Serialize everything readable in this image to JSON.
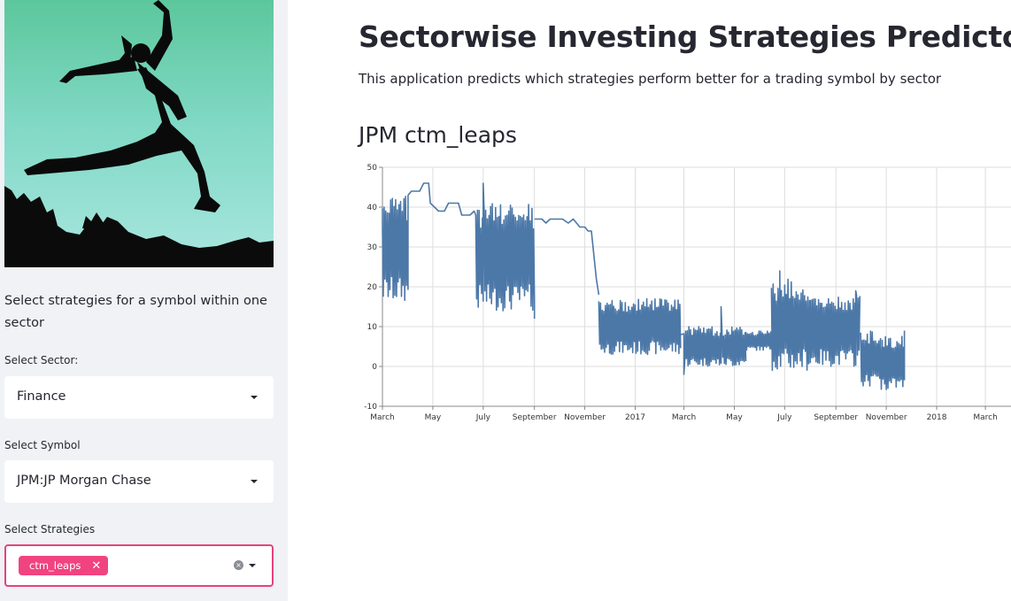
{
  "sidebar": {
    "intro": "Select strategies for a symbol within one sector",
    "sector_label": "Select Sector:",
    "sector_value": "Finance",
    "symbol_label": "Select Symbol",
    "symbol_value": "JPM:JP Morgan Chase",
    "strategies_label": "Select Strategies",
    "selected_strategies": [
      "ctm_leaps"
    ],
    "tag_remove": "✕",
    "clear_icon": "×"
  },
  "main": {
    "title": "Sectorwise Investing Strategies Predictor",
    "subtitle": "This application predicts which strategies perform better for a trading symbol by sector",
    "chart_heading": "JPM ctm_leaps"
  },
  "colors": {
    "accent": "#f0437f",
    "line": "#4c78a8",
    "sidebar_bg": "#f0f2f6"
  },
  "chart_data": {
    "type": "line",
    "title": "JPM ctm_leaps",
    "ylim": [
      -10,
      50
    ],
    "yticks": [
      -10,
      0,
      10,
      20,
      30,
      40,
      50
    ],
    "xlim": [
      "2016-03-01",
      "2018-04-01"
    ],
    "xticks": [
      {
        "date": "2016-03-01",
        "label": "March"
      },
      {
        "date": "2016-05-01",
        "label": "May"
      },
      {
        "date": "2016-07-01",
        "label": "July"
      },
      {
        "date": "2016-09-01",
        "label": "September"
      },
      {
        "date": "2016-11-01",
        "label": "November"
      },
      {
        "date": "2017-01-01",
        "label": "2017"
      },
      {
        "date": "2017-03-01",
        "label": "March"
      },
      {
        "date": "2017-05-01",
        "label": "May"
      },
      {
        "date": "2017-07-01",
        "label": "July"
      },
      {
        "date": "2017-09-01",
        "label": "September"
      },
      {
        "date": "2017-11-01",
        "label": "November"
      },
      {
        "date": "2018-01-01",
        "label": "2018"
      },
      {
        "date": "2018-03-01",
        "label": "March"
      }
    ],
    "grid": true,
    "series": [
      {
        "color": "#4c78a8",
        "segments": [
          {
            "range": [
              "2016-03-01",
              "2016-04-01"
            ],
            "high": 43,
            "low": 16,
            "points": [
              [
                "2016-03-01",
                35
              ],
              [
                "2016-04-01",
                43
              ]
            ]
          },
          {
            "points": [
              [
                "2016-04-01",
                43
              ],
              [
                "2016-04-05",
                44
              ],
              [
                "2016-04-15",
                44
              ],
              [
                "2016-04-20",
                46
              ],
              [
                "2016-04-26",
                46
              ],
              [
                "2016-04-28",
                41
              ],
              [
                "2016-05-03",
                40
              ],
              [
                "2016-05-08",
                39
              ],
              [
                "2016-05-15",
                39
              ],
              [
                "2016-05-20",
                41
              ],
              [
                "2016-06-01",
                41
              ],
              [
                "2016-06-05",
                38
              ],
              [
                "2016-06-15",
                38
              ],
              [
                "2016-06-20",
                39
              ],
              [
                "2016-06-22",
                38
              ]
            ]
          },
          {
            "range": [
              "2016-06-22",
              "2016-09-01"
            ],
            "high": 41,
            "low": 14,
            "points": [
              [
                "2016-07-01",
                46
              ],
              [
                "2016-08-01",
                39
              ],
              [
                "2016-09-01",
                12
              ]
            ]
          },
          {
            "points": [
              [
                "2016-09-01",
                37
              ],
              [
                "2016-09-10",
                37
              ],
              [
                "2016-09-15",
                36
              ],
              [
                "2016-09-20",
                37
              ],
              [
                "2016-10-05",
                37
              ],
              [
                "2016-10-12",
                36
              ],
              [
                "2016-10-18",
                37
              ],
              [
                "2016-10-26",
                35
              ],
              [
                "2016-11-01",
                35
              ],
              [
                "2016-11-05",
                34
              ],
              [
                "2016-11-09",
                34
              ],
              [
                "2016-11-15",
                22
              ],
              [
                "2016-11-18",
                18
              ]
            ]
          },
          {
            "range": [
              "2016-11-18",
              "2017-02-25"
            ],
            "high": 17,
            "low": 3,
            "points": []
          },
          {
            "range": [
              "2017-03-01",
              "2017-05-15"
            ],
            "high": 10,
            "low": 0,
            "points": [
              [
                "2017-02-25",
                8
              ],
              [
                "2017-03-01",
                -2
              ],
              [
                "2017-03-07",
                10
              ],
              [
                "2017-04-15",
                15
              ]
            ]
          },
          {
            "range": [
              "2017-05-15",
              "2017-06-15"
            ],
            "high": 9,
            "low": 4,
            "points": []
          },
          {
            "range": [
              "2017-06-15",
              "2017-08-01"
            ],
            "high": 22,
            "low": -1,
            "points": [
              [
                "2017-06-25",
                24
              ]
            ]
          },
          {
            "range": [
              "2017-08-01",
              "2017-09-30"
            ],
            "high": 18,
            "low": 0,
            "points": [
              [
                "2017-09-25",
                19
              ]
            ]
          },
          {
            "range": [
              "2017-10-01",
              "2017-10-25"
            ],
            "high": 9,
            "low": -5,
            "points": []
          },
          {
            "range": [
              "2017-10-25",
              "2017-11-23"
            ],
            "high": 8,
            "low": -6,
            "points": [
              [
                "2017-11-23",
                9
              ]
            ]
          }
        ]
      }
    ]
  }
}
